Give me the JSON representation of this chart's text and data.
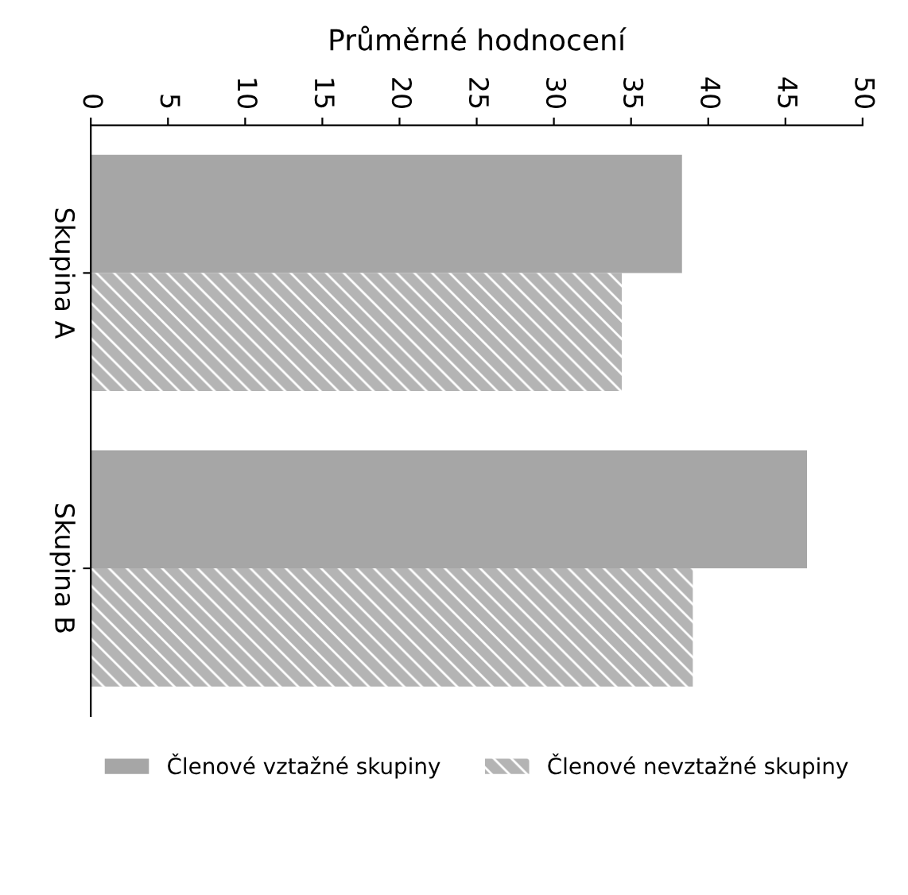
{
  "chart_data": {
    "type": "bar",
    "orientation": "horizontal",
    "title": "Průměrné hodnocení",
    "categories": [
      "Skupina A",
      "Skupina B"
    ],
    "series": [
      {
        "name": "Členové vztažné skupiny",
        "color": "#a6a6a6",
        "values": [
          38.3,
          46.4
        ]
      },
      {
        "name": "Členové nevztažné skupiny",
        "color": "#b4b4b4",
        "values": [
          34.4,
          39.0
        ]
      }
    ],
    "xlim": [
      0,
      50
    ],
    "xticks": [
      0,
      5,
      10,
      15,
      20,
      25,
      30,
      35,
      40,
      45,
      50
    ],
    "grid": false,
    "legend": "bottom"
  }
}
